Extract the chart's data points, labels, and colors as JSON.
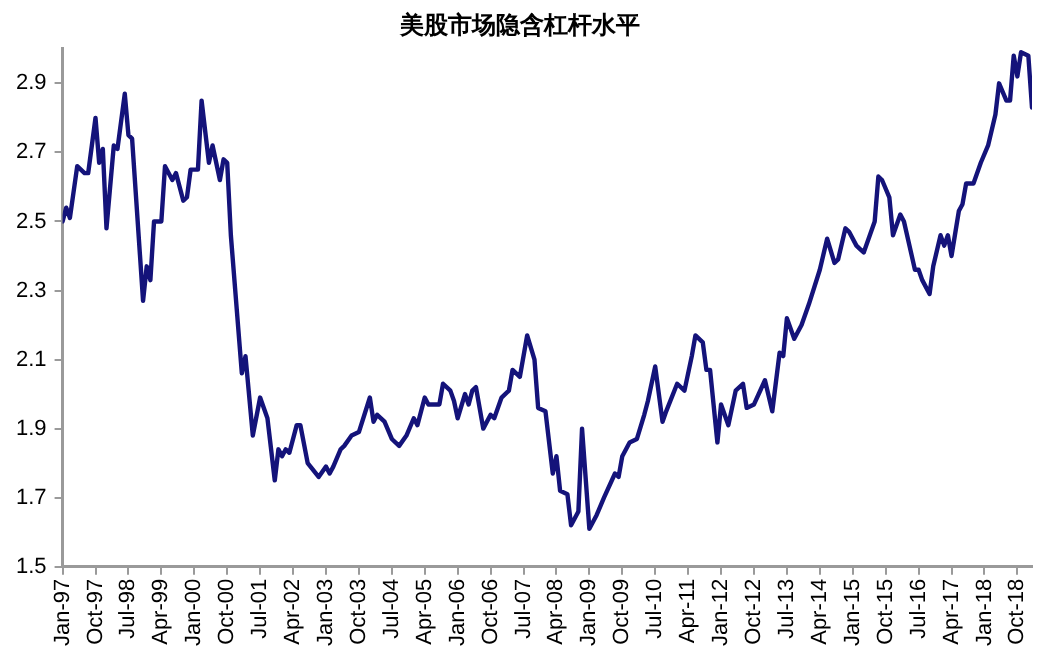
{
  "chart_data": {
    "type": "line",
    "title": "美股市场隐含杠杆水平",
    "color": "#14137a",
    "grid": false,
    "legend": false,
    "marker": "none",
    "line_style": "solid",
    "xlim": [
      "1997-01",
      "2019-02"
    ],
    "xticks": [
      {
        "value": "1997-01",
        "label": "Jan-97"
      },
      {
        "value": "1997-10",
        "label": "Oct-97"
      },
      {
        "value": "1998-07",
        "label": "Jul-98"
      },
      {
        "value": "1999-04",
        "label": "Apr-99"
      },
      {
        "value": "2000-01",
        "label": "Jan-00"
      },
      {
        "value": "2000-10",
        "label": "Oct-00"
      },
      {
        "value": "2001-07",
        "label": "Jul-01"
      },
      {
        "value": "2002-04",
        "label": "Apr-02"
      },
      {
        "value": "2003-01",
        "label": "Jan-03"
      },
      {
        "value": "2003-10",
        "label": "Oct-03"
      },
      {
        "value": "2004-07",
        "label": "Jul-04"
      },
      {
        "value": "2005-04",
        "label": "Apr-05"
      },
      {
        "value": "2006-01",
        "label": "Jan-06"
      },
      {
        "value": "2006-10",
        "label": "Oct-06"
      },
      {
        "value": "2007-07",
        "label": "Jul-07"
      },
      {
        "value": "2008-04",
        "label": "Apr-08"
      },
      {
        "value": "2009-01",
        "label": "Jan-09"
      },
      {
        "value": "2009-10",
        "label": "Oct-09"
      },
      {
        "value": "2010-07",
        "label": "Jul-10"
      },
      {
        "value": "2011-04",
        "label": "Apr-11"
      },
      {
        "value": "2012-01",
        "label": "Jan-12"
      },
      {
        "value": "2012-10",
        "label": "Oct-12"
      },
      {
        "value": "2013-07",
        "label": "Jul-13"
      },
      {
        "value": "2014-04",
        "label": "Apr-14"
      },
      {
        "value": "2015-01",
        "label": "Jan-15"
      },
      {
        "value": "2015-10",
        "label": "Oct-15"
      },
      {
        "value": "2016-07",
        "label": "Jul-16"
      },
      {
        "value": "2017-04",
        "label": "Apr-17"
      },
      {
        "value": "2018-01",
        "label": "Jan-18"
      },
      {
        "value": "2018-10",
        "label": "Oct-18"
      }
    ],
    "ylim": [
      1.5,
      3.0
    ],
    "yticks": [
      1.5,
      1.7,
      1.9,
      2.1,
      2.3,
      2.5,
      2.7,
      2.9
    ],
    "x": [
      "1997-01",
      "1997-02",
      "1997-03",
      "1997-05",
      "1997-07",
      "1997-08",
      "1997-10",
      "1997-11",
      "1997-12",
      "1998-01",
      "1998-03",
      "1998-04",
      "1998-06",
      "1998-07",
      "1998-08",
      "1998-11",
      "1998-12",
      "1999-01",
      "1999-02",
      "1999-04",
      "1999-05",
      "1999-07",
      "1999-08",
      "1999-10",
      "1999-11",
      "1999-12",
      "2000-02",
      "2000-03",
      "2000-05",
      "2000-06",
      "2000-08",
      "2000-09",
      "2000-10",
      "2000-11",
      "2001-02",
      "2001-03",
      "2001-05",
      "2001-07",
      "2001-09",
      "2001-11",
      "2001-12",
      "2002-01",
      "2002-02",
      "2002-03",
      "2002-05",
      "2002-06",
      "2002-08",
      "2002-11",
      "2003-01",
      "2003-02",
      "2003-03",
      "2003-05",
      "2003-06",
      "2003-08",
      "2003-10",
      "2004-01",
      "2004-02",
      "2004-03",
      "2004-05",
      "2004-07",
      "2004-09",
      "2004-11",
      "2005-01",
      "2005-02",
      "2005-04",
      "2005-05",
      "2005-08",
      "2005-09",
      "2005-11",
      "2005-12",
      "2006-01",
      "2006-03",
      "2006-04",
      "2006-05",
      "2006-06",
      "2006-08",
      "2006-10",
      "2006-11",
      "2007-01",
      "2007-03",
      "2007-04",
      "2007-06",
      "2007-08",
      "2007-10",
      "2007-11",
      "2008-01",
      "2008-03",
      "2008-04",
      "2008-05",
      "2008-07",
      "2008-08",
      "2008-10",
      "2008-11",
      "2009-01",
      "2009-03",
      "2009-05",
      "2009-08",
      "2009-09",
      "2009-10",
      "2009-12",
      "2010-02",
      "2010-04",
      "2010-05",
      "2010-07",
      "2010-09",
      "2010-10",
      "2011-01",
      "2011-03",
      "2011-05",
      "2011-06",
      "2011-08",
      "2011-09",
      "2011-10",
      "2011-12",
      "2012-01",
      "2012-03",
      "2012-05",
      "2012-07",
      "2012-08",
      "2012-10",
      "2013-01",
      "2013-03",
      "2013-05",
      "2013-06",
      "2013-07",
      "2013-09",
      "2013-11",
      "2014-01",
      "2014-04",
      "2014-06",
      "2014-08",
      "2014-09",
      "2014-11",
      "2014-12",
      "2015-02",
      "2015-03",
      "2015-04",
      "2015-07",
      "2015-08",
      "2015-09",
      "2015-11",
      "2015-12",
      "2016-02",
      "2016-03",
      "2016-06",
      "2016-07",
      "2016-08",
      "2016-10",
      "2016-11",
      "2017-01",
      "2017-02",
      "2017-03",
      "2017-04",
      "2017-06",
      "2017-07",
      "2017-08",
      "2017-10",
      "2017-12",
      "2018-02",
      "2018-04",
      "2018-05",
      "2018-07",
      "2018-08",
      "2018-09",
      "2018-10",
      "2018-11",
      "2019-01",
      "2019-02"
    ],
    "values": [
      2.5,
      2.54,
      2.51,
      2.66,
      2.64,
      2.64,
      2.8,
      2.67,
      2.71,
      2.48,
      2.72,
      2.71,
      2.87,
      2.75,
      2.74,
      2.27,
      2.37,
      2.33,
      2.5,
      2.5,
      2.66,
      2.62,
      2.64,
      2.56,
      2.57,
      2.65,
      2.65,
      2.85,
      2.67,
      2.72,
      2.62,
      2.68,
      2.67,
      2.46,
      2.06,
      2.11,
      1.88,
      1.99,
      1.93,
      1.75,
      1.84,
      1.82,
      1.84,
      1.83,
      1.91,
      1.91,
      1.8,
      1.76,
      1.79,
      1.77,
      1.79,
      1.84,
      1.85,
      1.88,
      1.89,
      1.99,
      1.92,
      1.94,
      1.92,
      1.87,
      1.85,
      1.88,
      1.93,
      1.91,
      1.99,
      1.97,
      1.97,
      2.03,
      2.01,
      1.98,
      1.93,
      2.0,
      1.97,
      2.01,
      2.02,
      1.9,
      1.94,
      1.93,
      1.99,
      2.01,
      2.07,
      2.05,
      2.17,
      2.1,
      1.96,
      1.95,
      1.77,
      1.82,
      1.72,
      1.71,
      1.62,
      1.66,
      1.9,
      1.61,
      1.65,
      1.7,
      1.77,
      1.76,
      1.82,
      1.86,
      1.87,
      1.94,
      1.98,
      2.08,
      1.92,
      1.95,
      2.03,
      2.01,
      2.11,
      2.17,
      2.15,
      2.07,
      2.07,
      1.86,
      1.97,
      1.91,
      2.01,
      2.03,
      1.96,
      1.97,
      2.04,
      1.95,
      2.12,
      2.11,
      2.22,
      2.16,
      2.2,
      2.26,
      2.36,
      2.45,
      2.38,
      2.39,
      2.48,
      2.47,
      2.43,
      2.42,
      2.41,
      2.5,
      2.63,
      2.62,
      2.57,
      2.46,
      2.52,
      2.5,
      2.36,
      2.36,
      2.33,
      2.29,
      2.37,
      2.46,
      2.43,
      2.46,
      2.4,
      2.53,
      2.55,
      2.61,
      2.61,
      2.67,
      2.72,
      2.81,
      2.9,
      2.85,
      2.85,
      2.98,
      2.92,
      2.99,
      2.98,
      2.83
    ]
  }
}
